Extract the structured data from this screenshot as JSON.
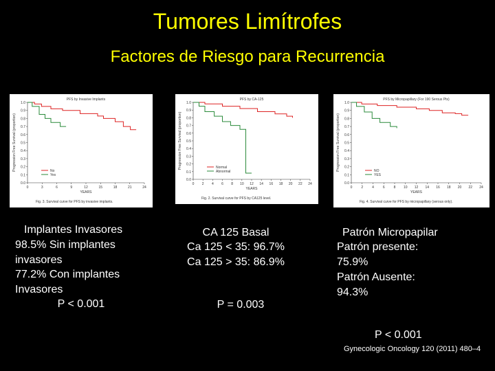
{
  "header": {
    "title": "Tumores Limítrofes",
    "subtitle": "Factores  de Riesgo para Recurrencia"
  },
  "panels": [
    {
      "title": "PFS by Invasive Implants",
      "y_label": "Progression Free Survival (proportion)",
      "x_label": "YEARS",
      "y_ticks": [
        "1.0",
        "0.9",
        "0.8",
        "0.7",
        "0.6",
        "0.5",
        "0.4",
        "0.3",
        "0.2",
        "0.1",
        "0.0"
      ],
      "x_ticks": [
        "0",
        "3",
        "6",
        "9",
        "12",
        "15",
        "18",
        "21",
        "24"
      ],
      "legend": [
        "No",
        "Yes"
      ],
      "caption": "Fig. 3. Survival curve for PFS by invasive implants."
    },
    {
      "title": "PFS by CA-125",
      "y_label": "Progression Free Survival (proportion)",
      "x_label": "YEARS",
      "y_ticks": [
        "1.0",
        "0.9",
        "0.8",
        "0.7",
        "0.6",
        "0.5",
        "0.4",
        "0.3",
        "0.2",
        "0.1",
        "0.0"
      ],
      "x_ticks": [
        "0",
        "2",
        "4",
        "6",
        "8",
        "10",
        "12",
        "14",
        "16",
        "18",
        "20",
        "22",
        "24"
      ],
      "legend": [
        "Normal",
        "Abnormal"
      ],
      "caption": "Fig. 2. Survival curve for PFS by CA125 level."
    },
    {
      "title": "PFS by Micropapillary (For 190 Serous Pts)",
      "y_label": "Progression Free Survival (proportion)",
      "x_label": "YEARS",
      "y_ticks": [
        "1.0",
        "0.9",
        "0.8",
        "0.7",
        "0.6",
        "0.5",
        "0.4",
        "0.3",
        "0.2",
        "0.1",
        "0.0"
      ],
      "x_ticks": [
        "0",
        "2",
        "4",
        "6",
        "8",
        "10",
        "12",
        "14",
        "16",
        "18",
        "20",
        "22",
        "24"
      ],
      "legend": [
        "NO",
        "YES"
      ],
      "caption": "Fig. 4. Survival curve for PFS by micropapillary (serous only)."
    }
  ],
  "text_blocks": [
    {
      "lines": [
        "Implantes Invasores",
        "98.5% Sin implantes",
        "invasores",
        "77.2% Con implantes",
        "Invasores",
        "P < 0.001"
      ]
    },
    {
      "lines": [
        "CA 125 Basal",
        "Ca 125 < 35:  96.7%",
        "Ca 125 > 35:  86.9%",
        "P = 0.003"
      ]
    },
    {
      "lines": [
        "Patrón Micropapilar",
        "Patrón presente:",
        "75.9%",
        "Patrón Ausente:",
        "94.3%",
        "P < 0.001"
      ]
    }
  ],
  "source": "Gynecologic Oncology 120 (2011) 480–4"
}
